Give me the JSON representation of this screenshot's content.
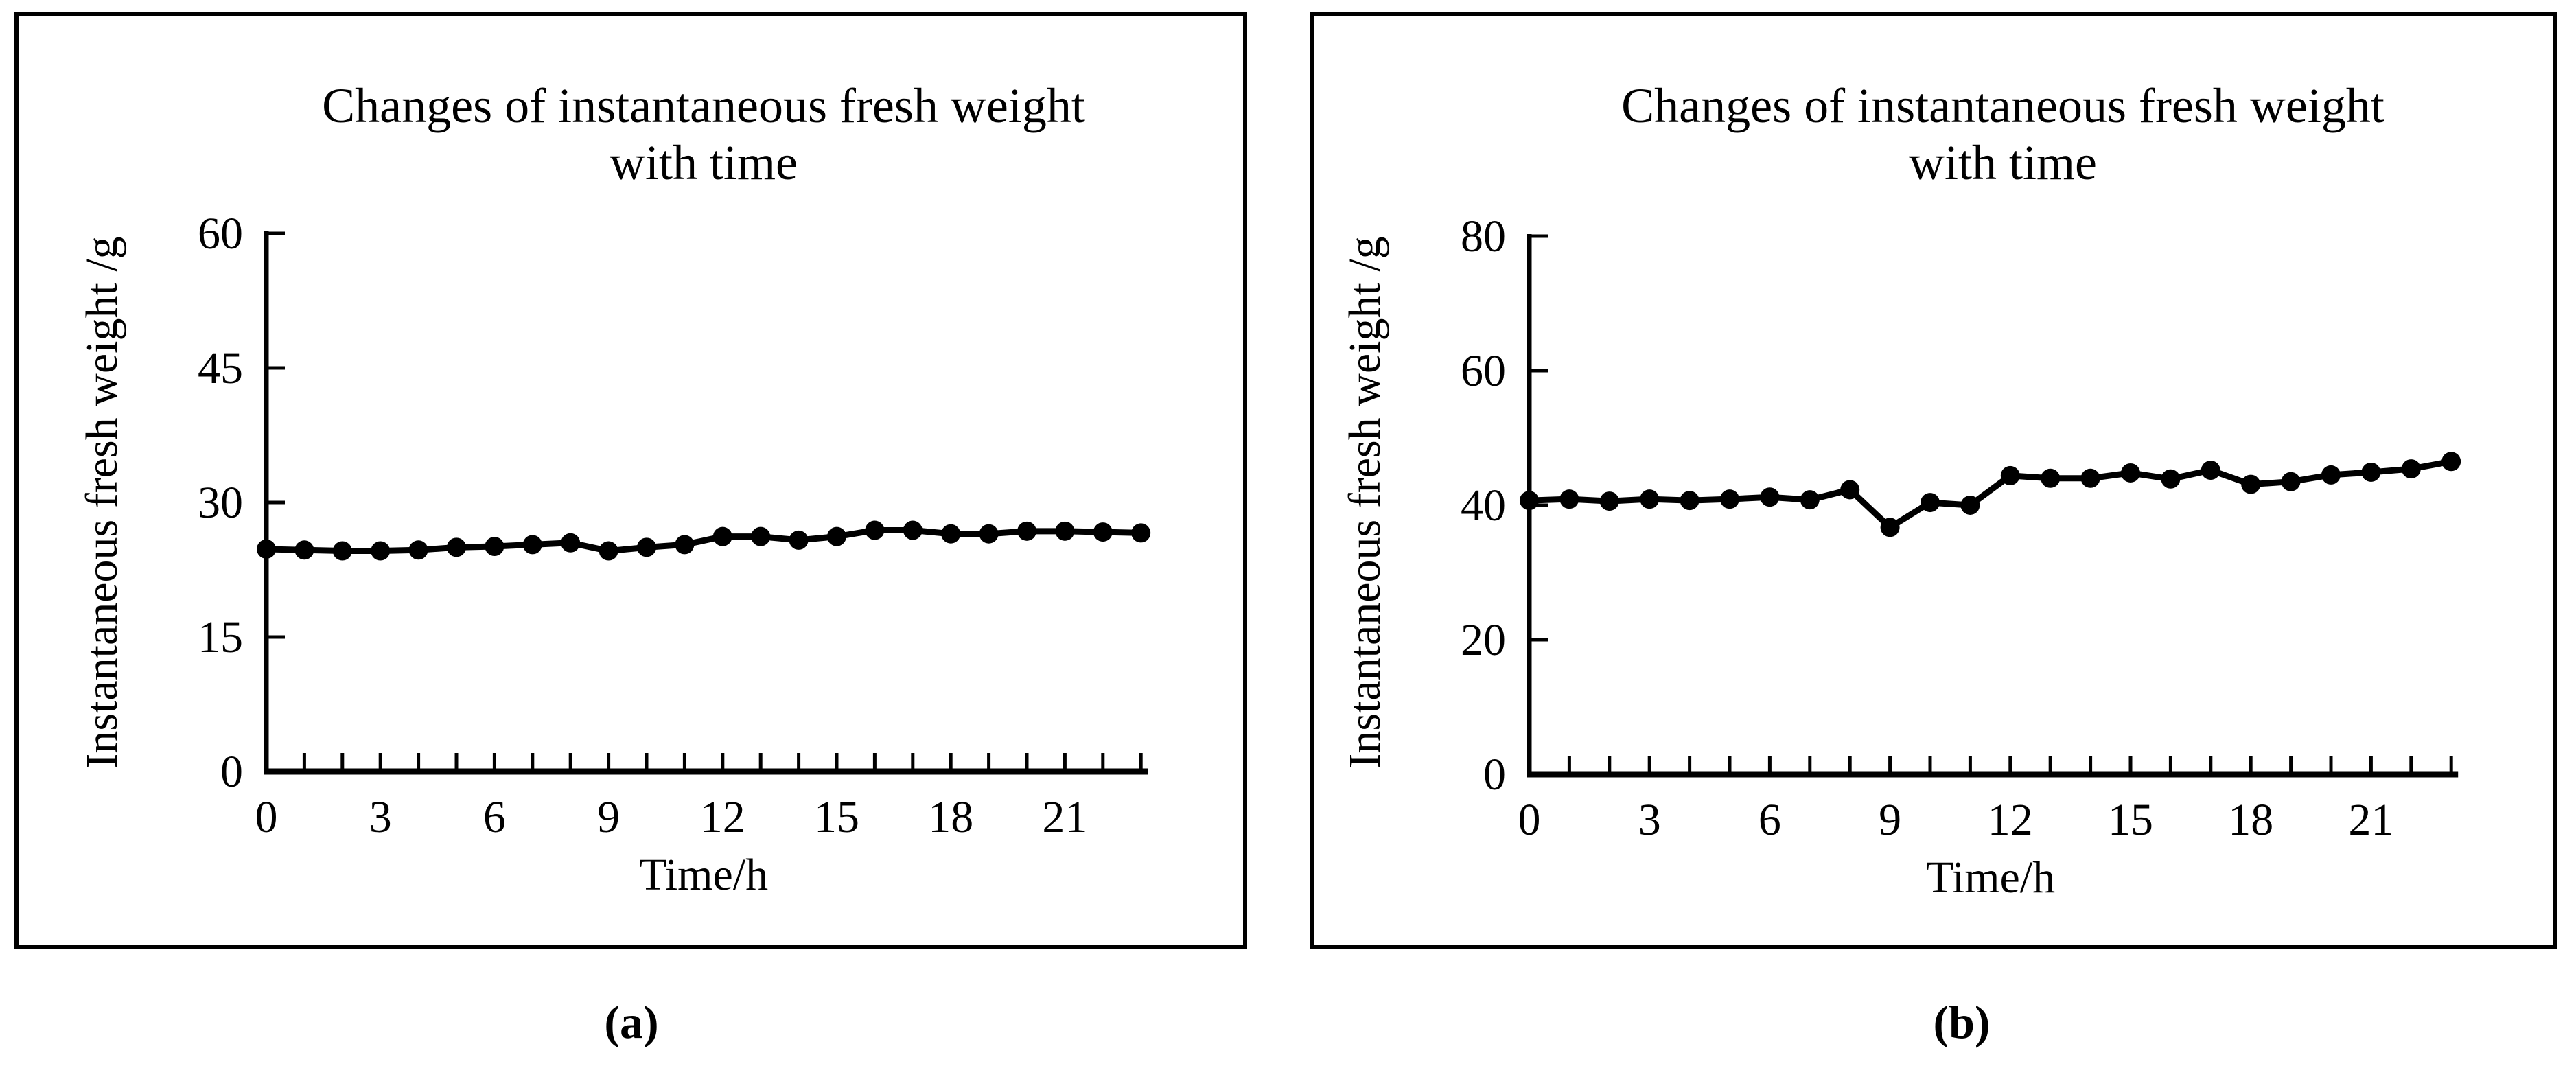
{
  "figure": {
    "background": "#ffffff",
    "ink_color": "#000000",
    "captions": [
      "(a)",
      "(b)"
    ]
  },
  "chart_data": [
    {
      "type": "line",
      "panel": "a",
      "title": "Changes of instantaneous fresh weight with time",
      "title_lines": [
        "Changes of instantaneous fresh weight",
        "with time"
      ],
      "xlabel": "Time/h",
      "ylabel": "Instantaneous fresh weight /g",
      "x": [
        0,
        1,
        2,
        3,
        4,
        5,
        6,
        7,
        8,
        9,
        10,
        11,
        12,
        13,
        14,
        15,
        16,
        17,
        18,
        19,
        20,
        21,
        22,
        23
      ],
      "y": [
        24.8,
        24.7,
        24.6,
        24.6,
        24.7,
        25.0,
        25.1,
        25.3,
        25.5,
        24.6,
        25.0,
        25.3,
        26.2,
        26.2,
        25.8,
        26.2,
        26.9,
        26.9,
        26.5,
        26.5,
        26.8,
        26.8,
        26.7,
        26.6
      ],
      "xlim": [
        0,
        23
      ],
      "ylim": [
        0,
        60
      ],
      "yticks": [
        0,
        15,
        30,
        45,
        60
      ],
      "xticks_labeled": [
        0,
        3,
        6,
        9,
        12,
        15,
        18,
        21
      ],
      "xticks_minor_step": 1,
      "grid": false,
      "legend": null,
      "marker": "filled-circle",
      "color": "#000000"
    },
    {
      "type": "line",
      "panel": "b",
      "title": "Changes of instantaneous fresh weight with time",
      "title_lines": [
        "Changes of instantaneous fresh weight",
        "with time"
      ],
      "xlabel": "Time/h",
      "ylabel": "Instantaneous fresh weight /g",
      "x": [
        0,
        1,
        2,
        3,
        4,
        5,
        6,
        7,
        8,
        9,
        10,
        11,
        12,
        13,
        14,
        15,
        16,
        17,
        18,
        19,
        20,
        21,
        22,
        23
      ],
      "y": [
        40.7,
        40.9,
        40.6,
        40.9,
        40.7,
        40.9,
        41.2,
        40.8,
        42.3,
        36.7,
        40.4,
        40.0,
        44.4,
        44.0,
        44.0,
        44.8,
        43.9,
        45.2,
        43.1,
        43.5,
        44.5,
        44.9,
        45.4,
        46.5
      ],
      "xlim": [
        0,
        23
      ],
      "ylim": [
        0,
        80
      ],
      "yticks": [
        0,
        20,
        40,
        60,
        80
      ],
      "xticks_labeled": [
        0,
        3,
        6,
        9,
        12,
        15,
        18,
        21
      ],
      "xticks_minor_step": 1,
      "grid": false,
      "legend": null,
      "marker": "filled-circle",
      "color": "#000000"
    }
  ]
}
